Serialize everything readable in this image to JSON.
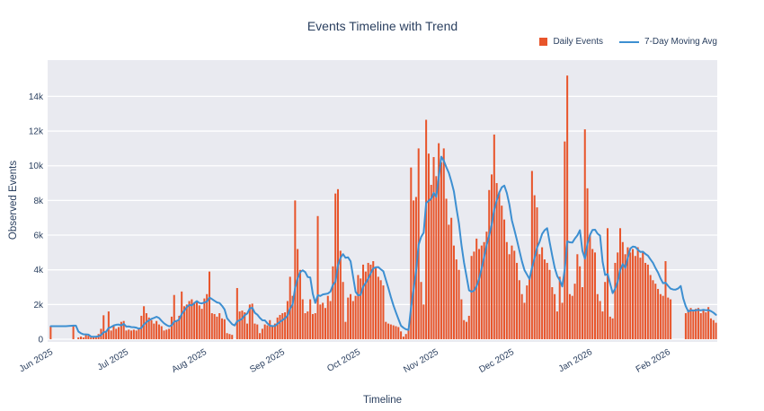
{
  "title": "Events Timeline with Trend",
  "colors": {
    "bar": "#E8552B",
    "line": "#3D8FD1",
    "plot_bg": "#E9EAF0",
    "grid": "#FFFFFF",
    "text": "#2A3F5F"
  },
  "legend": [
    {
      "label": "Daily Events",
      "type": "bar",
      "color": "#E8552B"
    },
    {
      "label": "7-Day Moving Avg",
      "type": "line",
      "color": "#3D8FD1"
    }
  ],
  "chart_data": {
    "type": "bar",
    "title": "Events Timeline with Trend",
    "xlabel": "Timeline",
    "ylabel": "Observed Events",
    "start_date": "2025-06-01",
    "x_tick_labels": [
      "Jun 2025",
      "Jul 2025",
      "Aug 2025",
      "Sep 2025",
      "Oct 2025",
      "Nov 2025",
      "Dec 2025",
      "Jan 2026",
      "Feb 2026"
    ],
    "x_tick_indices": [
      0,
      30,
      61,
      92,
      122,
      153,
      183,
      214,
      245
    ],
    "y_tick_labels": [
      "0",
      "2k",
      "4k",
      "6k",
      "8k",
      "10k",
      "12k",
      "14k"
    ],
    "y_tick_values": [
      0,
      2000,
      4000,
      6000,
      8000,
      10000,
      12000,
      14000
    ],
    "ylim": [
      0,
      16000
    ],
    "grid": "horizontal-only",
    "legend_position": "top-right",
    "series": [
      {
        "name": "Daily Events",
        "type": "bar",
        "color": "#E8552B",
        "values": [
          750,
          null,
          null,
          null,
          null,
          null,
          null,
          null,
          null,
          780,
          null,
          100,
          150,
          100,
          250,
          200,
          100,
          100,
          150,
          300,
          600,
          1380,
          400,
          1600,
          500,
          750,
          600,
          700,
          1000,
          1050,
          500,
          550,
          500,
          550,
          500,
          600,
          1350,
          1900,
          1500,
          1250,
          1100,
          900,
          1050,
          850,
          750,
          500,
          550,
          600,
          1300,
          2550,
          1100,
          1350,
          2750,
          1900,
          2000,
          2200,
          2300,
          2100,
          2150,
          1950,
          1750,
          2350,
          2600,
          3900,
          1500,
          1450,
          1300,
          1500,
          1200,
          1150,
          350,
          300,
          250,
          null,
          2950,
          1600,
          1650,
          1550,
          900,
          2000,
          2050,
          900,
          850,
          350,
          600,
          850,
          800,
          1100,
          750,
          900,
          1250,
          1400,
          1500,
          1550,
          2200,
          3600,
          2500,
          8000,
          5200,
          4000,
          2300,
          1500,
          1600,
          2300,
          1450,
          1500,
          7100,
          2000,
          2100,
          1800,
          2500,
          2200,
          4200,
          8400,
          8650,
          5100,
          3300,
          1000,
          2400,
          2600,
          2200,
          2500,
          3700,
          3500,
          4300,
          3900,
          4400,
          4300,
          4500,
          4100,
          3600,
          3400,
          3100,
          1000,
          900,
          850,
          800,
          750,
          700,
          450,
          150,
          300,
          600,
          9900,
          8000,
          8200,
          11000,
          3300,
          2000,
          12650,
          10700,
          8900,
          10500,
          9400,
          11300,
          10200,
          11000,
          8100,
          6600,
          7000,
          5400,
          4600,
          4000,
          2300,
          1100,
          1000,
          1350,
          4800,
          5050,
          5800,
          5200,
          5400,
          5600,
          6200,
          8600,
          9500,
          11800,
          9000,
          8500,
          7700,
          6900,
          5600,
          4900,
          5400,
          5100,
          4400,
          3400,
          2600,
          2100,
          3100,
          3600,
          9700,
          8300,
          7600,
          4900,
          5300,
          4600,
          4400,
          4000,
          3000,
          2600,
          1600,
          3600,
          2100,
          11400,
          15200,
          2600,
          2500,
          3200,
          4900,
          4200,
          3000,
          12100,
          8700,
          6000,
          5200,
          5000,
          2600,
          2200,
          1600,
          3300,
          6400,
          1300,
          1200,
          4400,
          5000,
          6400,
          5600,
          4900,
          5300,
          5000,
          5200,
          4800,
          5300,
          4700,
          5000,
          4400,
          4300,
          3700,
          3400,
          3200,
          2900,
          2600,
          2500,
          4500,
          2400,
          2300,
          null,
          null,
          null,
          null,
          null,
          1500,
          1700,
          1800,
          1600,
          1750,
          1800,
          1500,
          1700,
          1550,
          1850,
          1200,
          1100,
          950
        ]
      },
      {
        "name": "7-Day Moving Avg",
        "type": "line",
        "color": "#3D8FD1",
        "derivation": "7-day rolling mean computed from Daily Events values"
      }
    ]
  }
}
